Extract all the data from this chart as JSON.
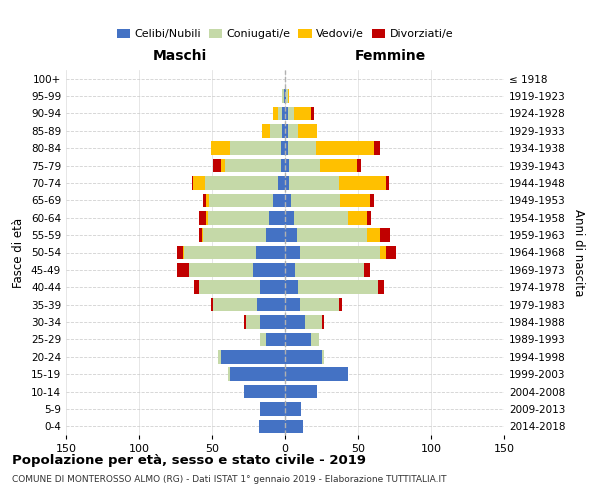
{
  "age_groups": [
    "0-4",
    "5-9",
    "10-14",
    "15-19",
    "20-24",
    "25-29",
    "30-34",
    "35-39",
    "40-44",
    "45-49",
    "50-54",
    "55-59",
    "60-64",
    "65-69",
    "70-74",
    "75-79",
    "80-84",
    "85-89",
    "90-94",
    "95-99",
    "100+"
  ],
  "birth_years": [
    "2014-2018",
    "2009-2013",
    "2004-2008",
    "1999-2003",
    "1994-1998",
    "1989-1993",
    "1984-1988",
    "1979-1983",
    "1974-1978",
    "1969-1973",
    "1964-1968",
    "1959-1963",
    "1954-1958",
    "1949-1953",
    "1944-1948",
    "1939-1943",
    "1934-1938",
    "1929-1933",
    "1924-1928",
    "1919-1923",
    "≤ 1918"
  ],
  "male": {
    "celibi": [
      18,
      17,
      28,
      38,
      44,
      13,
      17,
      19,
      17,
      22,
      20,
      13,
      11,
      8,
      5,
      3,
      3,
      2,
      2,
      1,
      0
    ],
    "coniugati": [
      0,
      0,
      0,
      1,
      2,
      4,
      10,
      30,
      42,
      44,
      49,
      43,
      42,
      44,
      50,
      38,
      35,
      8,
      3,
      1,
      0
    ],
    "vedovi": [
      0,
      0,
      0,
      0,
      0,
      0,
      0,
      0,
      0,
      0,
      1,
      1,
      1,
      2,
      8,
      3,
      13,
      6,
      3,
      0,
      0
    ],
    "divorziati": [
      0,
      0,
      0,
      0,
      0,
      0,
      1,
      2,
      3,
      8,
      4,
      2,
      5,
      2,
      1,
      5,
      0,
      0,
      0,
      0,
      0
    ]
  },
  "female": {
    "nubili": [
      12,
      11,
      22,
      43,
      25,
      18,
      14,
      10,
      9,
      7,
      10,
      8,
      6,
      4,
      3,
      3,
      2,
      2,
      2,
      1,
      0
    ],
    "coniugate": [
      0,
      0,
      0,
      0,
      2,
      5,
      11,
      27,
      55,
      47,
      55,
      48,
      37,
      34,
      34,
      21,
      19,
      7,
      4,
      1,
      0
    ],
    "vedove": [
      0,
      0,
      0,
      0,
      0,
      0,
      0,
      0,
      0,
      0,
      4,
      9,
      13,
      20,
      32,
      25,
      40,
      13,
      12,
      1,
      0
    ],
    "divorziate": [
      0,
      0,
      0,
      0,
      0,
      0,
      2,
      2,
      4,
      4,
      7,
      7,
      3,
      3,
      2,
      3,
      4,
      0,
      2,
      0,
      0
    ]
  },
  "color_celibi": "#4472c4",
  "color_coniugati": "#c5d9a8",
  "color_vedovi": "#ffc000",
  "color_divorziati": "#c00000",
  "title": "Popolazione per età, sesso e stato civile - 2019",
  "subtitle": "COMUNE DI MONTEROSSO ALMO (RG) - Dati ISTAT 1° gennaio 2019 - Elaborazione TUTTITALIA.IT",
  "ylabel_left": "Fasce di età",
  "ylabel_right": "Anni di nascita",
  "xlabel_left": "Maschi",
  "xlabel_right": "Femmine",
  "xlim": 150,
  "bg_color": "#ffffff",
  "grid_color": "#cccccc"
}
